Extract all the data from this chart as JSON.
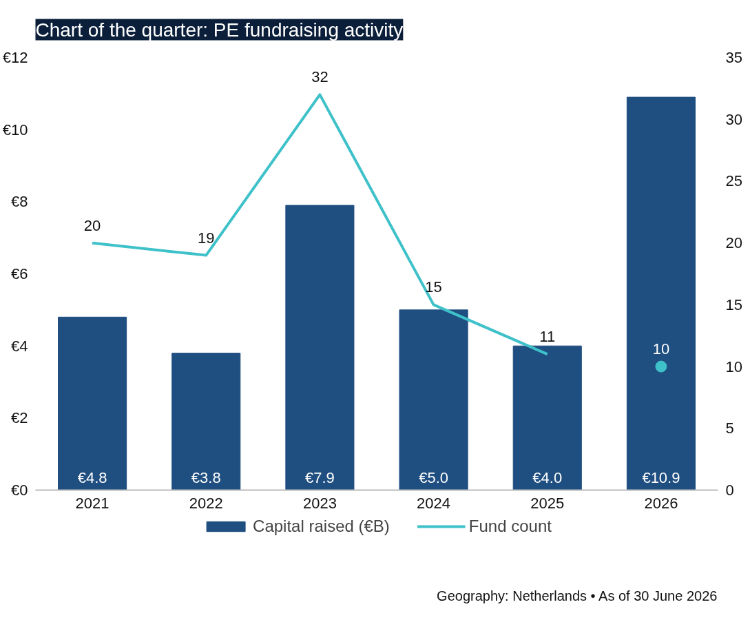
{
  "chart_data": {
    "type": "bar",
    "title": "Chart of the quarter: PE fundraising activity",
    "categories": [
      "2021",
      "2022",
      "2023",
      "2024",
      "2025",
      "2026"
    ],
    "series": [
      {
        "name": "Capital raised (€B)",
        "color": "#1f4e80",
        "values": [
          4.8,
          3.8,
          7.9,
          5.0,
          4.0,
          10.9
        ],
        "value_labels": [
          "€4.8",
          "€3.8",
          "€7.9",
          "€5.0",
          "€4.0",
          "€10.9"
        ]
      },
      {
        "name": "Fund count",
        "type": "line",
        "axis": "y2",
        "color": "#3fc1c9",
        "values": [
          20,
          19,
          32,
          15,
          11,
          null
        ],
        "value_labels": [
          "20",
          "19",
          "32",
          "15",
          "11",
          null
        ]
      },
      {
        "type": "scatter",
        "marker": "circle",
        "axis": "y2",
        "color": "#3fc1c9",
        "values": [
          null,
          null,
          null,
          null,
          null,
          10
        ],
        "value_labels": [
          null,
          null,
          null,
          null,
          null,
          "10"
        ]
      }
    ],
    "ylim": [
      0,
      12
    ],
    "yticks": [
      {
        "value": 0,
        "label": "€0"
      },
      {
        "value": 2,
        "label": "€2"
      },
      {
        "value": 4,
        "label": "€4"
      },
      {
        "value": 6,
        "label": "€6"
      },
      {
        "value": 8,
        "label": "€8"
      },
      {
        "value": 10,
        "label": "€10"
      },
      {
        "value": 12,
        "label": "€12"
      }
    ],
    "y2lim": [
      0,
      35
    ],
    "y2ticks": [
      0,
      5,
      10,
      15,
      20,
      25,
      30,
      35
    ],
    "grid": false,
    "legend": "bottom",
    "line_style": "solid",
    "annotations": [
      "Geography: Netherlands • As of 30 June 2026"
    ]
  }
}
